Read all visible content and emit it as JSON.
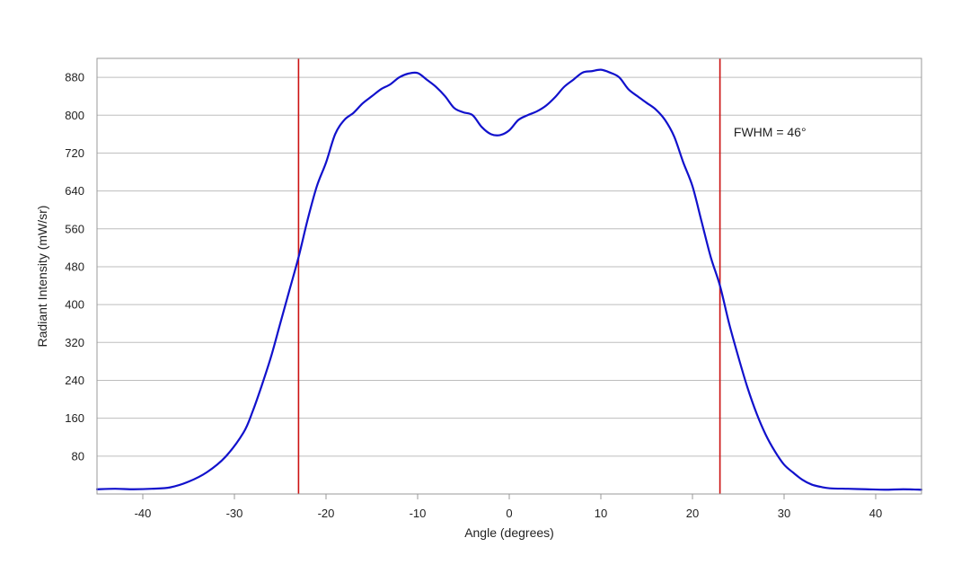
{
  "chart_data": {
    "type": "line",
    "title": "",
    "xlabel": "Angle (degrees)",
    "ylabel": "Radiant Intensity (mW/sr)",
    "xlim": [
      -45,
      45
    ],
    "ylim": [
      0,
      920
    ],
    "x_ticks": [
      -40,
      -30,
      -20,
      -10,
      0,
      10,
      20,
      30,
      40
    ],
    "x_tick_labels": [
      "-40",
      "-30",
      "-20",
      "-10",
      "0",
      "10",
      "20",
      "30",
      "40"
    ],
    "y_ticks": [
      80,
      160,
      240,
      320,
      400,
      480,
      560,
      640,
      720,
      800,
      880
    ],
    "y_tick_labels": [
      "80",
      "160",
      "240",
      "320",
      "400",
      "480",
      "560",
      "640",
      "720",
      "800",
      "880"
    ],
    "grid": "horizontal",
    "legend": "none",
    "colors": {
      "series": "#1111cc",
      "markers": "#cc1111",
      "grid": "#bdbdbd",
      "frame": "#999999"
    },
    "series": [
      {
        "x": [
          -45,
          -43,
          -41,
          -39,
          -37,
          -35,
          -33,
          -31,
          -29,
          -28,
          -27,
          -26,
          -25,
          -24,
          -23,
          -22,
          -21,
          -20,
          -19,
          -18,
          -17,
          -16,
          -15,
          -14,
          -13,
          -12,
          -11,
          -10,
          -9,
          -8,
          -7,
          -6,
          -5,
          -4,
          -3,
          -2,
          -1,
          0,
          1,
          2,
          3,
          4,
          5,
          6,
          7,
          8,
          9,
          10,
          11,
          12,
          13,
          14,
          15,
          16,
          17,
          18,
          19,
          20,
          21,
          22,
          23,
          24,
          25,
          26,
          27,
          28,
          29,
          30,
          31,
          32,
          33,
          34,
          35,
          37,
          39,
          41,
          43,
          45
        ],
        "y": [
          10,
          11,
          10,
          11,
          14,
          26,
          46,
          78,
          130,
          175,
          230,
          290,
          360,
          430,
          500,
          580,
          650,
          700,
          760,
          790,
          805,
          825,
          840,
          855,
          865,
          880,
          888,
          889,
          875,
          860,
          840,
          815,
          806,
          800,
          775,
          760,
          758,
          768,
          790,
          800,
          808,
          820,
          838,
          860,
          875,
          890,
          893,
          896,
          890,
          880,
          855,
          840,
          826,
          812,
          790,
          755,
          700,
          650,
          575,
          500,
          440,
          360,
          290,
          225,
          170,
          125,
          90,
          62,
          45,
          30,
          20,
          15,
          12,
          11,
          10,
          9,
          10,
          9
        ]
      }
    ],
    "markers": [
      {
        "x": -23
      },
      {
        "x": 23
      }
    ],
    "annotation": {
      "text": "FWHM = 46°",
      "x": 24.5,
      "y": 755
    }
  }
}
